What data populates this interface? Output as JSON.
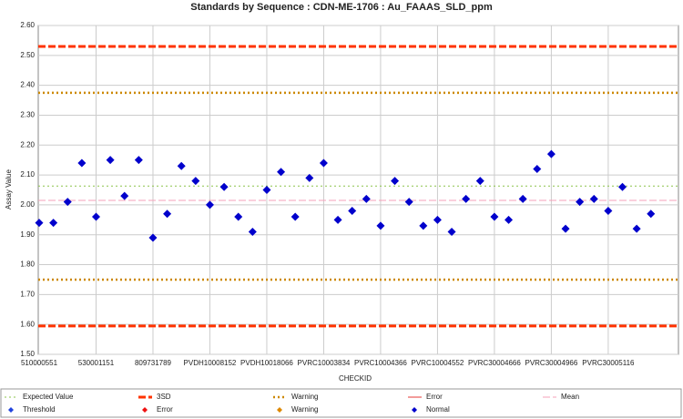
{
  "chart_data": {
    "type": "scatter",
    "title": "Standards by Sequence : CDN-ME-1706 : Au_FAAAS_SLD_ppm",
    "y_label": "Assay Value",
    "x_label": "CHECKID",
    "ylim": [
      1.5,
      2.6
    ],
    "yticks": [
      {
        "value": 1.5,
        "label": "1.50"
      },
      {
        "value": 1.6,
        "label": "1.60"
      },
      {
        "value": 1.7,
        "label": "1.70"
      },
      {
        "value": 1.8,
        "label": "1.80"
      },
      {
        "value": 1.9,
        "label": "1.90"
      },
      {
        "value": 2.0,
        "label": "2.00"
      },
      {
        "value": 2.1,
        "label": "2.10"
      },
      {
        "value": 2.2,
        "label": "2.20"
      },
      {
        "value": 2.3,
        "label": "2.30"
      },
      {
        "value": 2.4,
        "label": "2.40"
      },
      {
        "value": 2.5,
        "label": "2.50"
      },
      {
        "value": 2.6,
        "label": "2.60"
      }
    ],
    "grid": true,
    "categories": [
      "510000551",
      null,
      null,
      null,
      "530001151",
      null,
      null,
      null,
      "809731789",
      null,
      null,
      null,
      "PVDH10008152",
      null,
      null,
      null,
      "PVDH10018066",
      null,
      null,
      null,
      "PVRC10003834",
      null,
      null,
      null,
      "PVRC10004366",
      null,
      null,
      null,
      "PVRC10004552",
      null,
      null,
      null,
      "PVRC30004666",
      null,
      null,
      null,
      "PVRC30004966",
      null,
      null,
      null,
      "PVRC30005116",
      null,
      null,
      null
    ],
    "series": [
      {
        "name": "Normal",
        "color": "#0000cc",
        "values": [
          1.94,
          1.94,
          2.01,
          2.14,
          1.96,
          2.15,
          2.03,
          2.15,
          1.89,
          1.97,
          2.13,
          2.08,
          2.0,
          2.06,
          1.96,
          1.91,
          2.05,
          2.11,
          1.96,
          2.09,
          2.14,
          1.95,
          1.98,
          2.02,
          1.93,
          2.08,
          2.01,
          1.93,
          1.95,
          1.91,
          2.02,
          2.08,
          1.96,
          1.95,
          2.02,
          2.12,
          2.17,
          1.92,
          2.01,
          2.02,
          1.98,
          2.06,
          1.92,
          1.97
        ]
      }
    ],
    "reference_lines": [
      {
        "name": "Expected Value",
        "color": "#8bc34a",
        "style": "dotted",
        "values": [
          2.063
        ]
      },
      {
        "name": "3SD",
        "color": "#ff3300",
        "style": "dashed",
        "values": [
          2.53,
          1.595
        ]
      },
      {
        "name": "Warning",
        "color": "#cc8800",
        "style": "dotted",
        "values": [
          2.375,
          1.75
        ]
      },
      {
        "name": "Error",
        "color": "#e53935",
        "style": "solid"
      },
      {
        "name": "Mean",
        "color": "#f4a0b8",
        "style": "dashed",
        "values": [
          2.015
        ]
      }
    ],
    "marker_legend": [
      {
        "name": "Threshold",
        "color": "#2244dd"
      },
      {
        "name": "Error",
        "color": "#ee1111"
      },
      {
        "name": "Warning",
        "color": "#dd8800"
      }
    ]
  }
}
